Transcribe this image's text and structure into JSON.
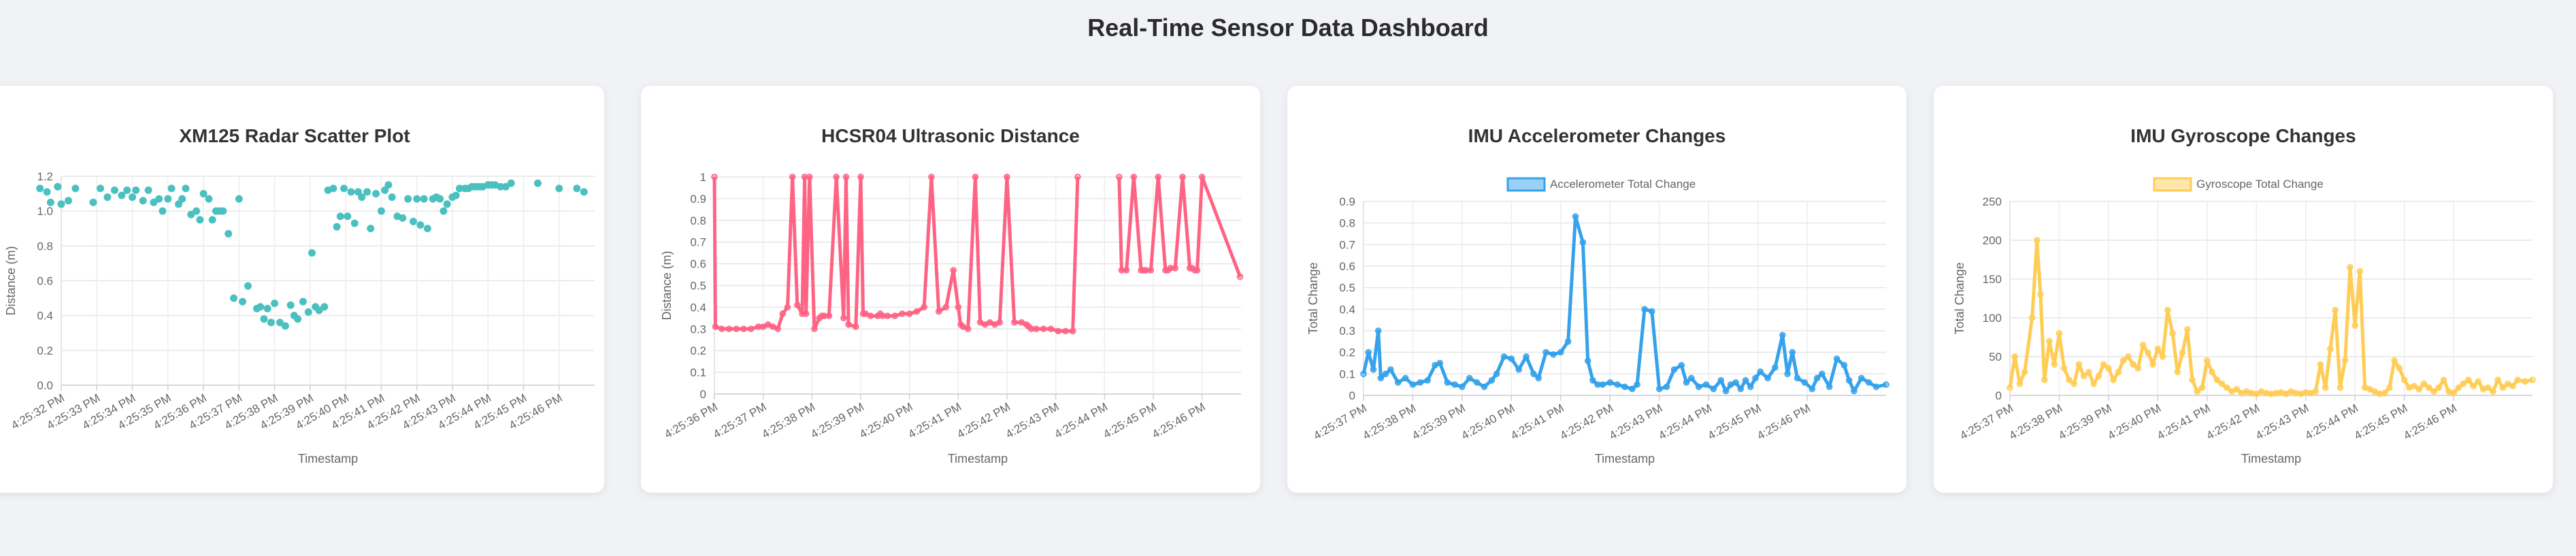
{
  "page": {
    "title": "Real-Time Sensor Data Dashboard"
  },
  "colors": {
    "radar": "#4bc0c0",
    "ultrasonic": "#ff6384",
    "accelerometer": "#36a2eb",
    "gyroscope": "#ffcd56"
  },
  "chart_data": [
    {
      "id": "radar",
      "type": "scatter",
      "title": "XM125 Radar Scatter Plot",
      "xlabel": "Timestamp",
      "ylabel": "Distance (m)",
      "ylim": [
        0,
        1.2
      ],
      "yticks": [
        0,
        0.2,
        0.4,
        0.6,
        0.8,
        1.0,
        1.2
      ],
      "xlim": [
        0,
        15
      ],
      "xtick_labels": [
        "4:25:32 PM",
        "4:25:33 PM",
        "4:25:34 PM",
        "4:25:35 PM",
        "4:25:36 PM",
        "4:25:37 PM",
        "4:25:38 PM",
        "4:25:39 PM",
        "4:25:40 PM",
        "4:25:41 PM",
        "4:25:42 PM",
        "4:25:43 PM",
        "4:25:44 PM",
        "4:25:45 PM",
        "4:25:46 PM"
      ],
      "legend": null,
      "x": [
        -0.6,
        -0.4,
        -0.3,
        -0.1,
        0.0,
        0.2,
        0.4,
        0.9,
        1.1,
        1.3,
        1.5,
        1.7,
        1.85,
        2.0,
        2.1,
        2.3,
        2.45,
        2.6,
        2.75,
        2.85,
        3.0,
        3.1,
        3.3,
        3.4,
        3.5,
        3.65,
        3.8,
        3.9,
        4.0,
        4.15,
        4.25,
        4.35,
        4.45,
        4.55,
        4.7,
        4.85,
        5.0,
        5.1,
        5.25,
        5.5,
        5.6,
        5.7,
        5.8,
        5.9,
        6.0,
        6.15,
        6.3,
        6.45,
        6.55,
        6.65,
        6.8,
        6.95,
        7.05,
        7.15,
        7.25,
        7.4,
        7.5,
        7.65,
        7.75,
        7.85,
        7.95,
        8.05,
        8.15,
        8.25,
        8.35,
        8.45,
        8.6,
        8.7,
        8.85,
        9.0,
        9.1,
        9.2,
        9.3,
        9.45,
        9.6,
        9.75,
        9.9,
        10.0,
        10.1,
        10.2,
        10.3,
        10.45,
        10.55,
        10.65,
        10.75,
        10.85,
        11.0,
        11.1,
        11.2,
        11.35,
        11.45,
        11.55,
        11.65,
        11.75,
        11.85,
        12.0,
        12.1,
        12.2,
        12.35,
        12.5,
        12.65,
        13.4,
        14.0,
        14.5,
        14.7
      ],
      "y": [
        1.13,
        1.11,
        1.05,
        1.14,
        1.04,
        1.06,
        1.13,
        1.05,
        1.13,
        1.08,
        1.12,
        1.09,
        1.12,
        1.08,
        1.12,
        1.06,
        1.12,
        1.05,
        1.07,
        1.0,
        1.07,
        1.13,
        1.04,
        1.07,
        1.13,
        0.98,
        1.0,
        0.95,
        1.1,
        1.07,
        0.95,
        1.0,
        1.0,
        1.0,
        0.87,
        0.5,
        1.07,
        0.48,
        0.57,
        0.44,
        0.45,
        0.38,
        0.44,
        0.36,
        0.47,
        0.36,
        0.34,
        0.46,
        0.4,
        0.38,
        0.48,
        0.42,
        0.76,
        0.45,
        0.43,
        0.45,
        1.12,
        1.13,
        0.91,
        0.97,
        1.13,
        0.97,
        1.11,
        0.93,
        1.11,
        1.08,
        1.11,
        0.9,
        1.1,
        1.0,
        1.12,
        1.15,
        1.08,
        0.97,
        0.96,
        1.07,
        0.94,
        1.07,
        0.92,
        1.07,
        0.9,
        1.07,
        1.08,
        1.07,
        1.0,
        1.04,
        1.08,
        1.09,
        1.13,
        1.13,
        1.13,
        1.14,
        1.14,
        1.14,
        1.14,
        1.15,
        1.15,
        1.15,
        1.14,
        1.14,
        1.16,
        1.16,
        1.13,
        1.13,
        1.11
      ]
    },
    {
      "id": "ultrasonic",
      "type": "line",
      "title": "HCSR04 Ultrasonic Distance",
      "xlabel": "Timestamp",
      "ylabel": "Distance (m)",
      "ylim": [
        0,
        1.0
      ],
      "yticks": [
        0,
        0.1,
        0.2,
        0.3,
        0.4,
        0.5,
        0.6,
        0.7,
        0.8,
        0.9,
        1.0
      ],
      "xlim": [
        0,
        10.8
      ],
      "xtick_labels": [
        "4:25:36 PM",
        "4:25:37 PM",
        "4:25:38 PM",
        "4:25:39 PM",
        "4:25:40 PM",
        "4:25:41 PM",
        "4:25:42 PM",
        "4:25:43 PM",
        "4:25:44 PM",
        "4:25:45 PM",
        "4:25:46 PM"
      ],
      "legend": null,
      "x": [
        0.0,
        0.02,
        0.15,
        0.3,
        0.45,
        0.6,
        0.75,
        0.9,
        1.0,
        1.1,
        1.2,
        1.3,
        1.4,
        1.5,
        1.6,
        1.7,
        1.8,
        1.85,
        1.88,
        1.95,
        2.05,
        2.15,
        2.2,
        2.25,
        2.35,
        2.5,
        2.65,
        2.7,
        2.75,
        2.9,
        3.0,
        3.05,
        3.1,
        3.2,
        3.35,
        3.4,
        3.45,
        3.55,
        3.7,
        3.85,
        4.0,
        4.15,
        4.3,
        4.45,
        4.6,
        4.75,
        4.9,
        5.0,
        5.05,
        5.1,
        5.2,
        5.35,
        5.45,
        5.55,
        5.65,
        5.75,
        5.85,
        6.0,
        6.15,
        6.3,
        6.4,
        6.45,
        6.5,
        6.6,
        6.75,
        6.9,
        7.05,
        7.2,
        7.35,
        7.45,
        7.5,
        7.55,
        7.6,
        8.25,
        8.3,
        8.35,
        8.45,
        8.6,
        8.75,
        8.8,
        8.85,
        8.95,
        9.1,
        9.25,
        9.3,
        9.35,
        9.45,
        9.6,
        9.75,
        9.8,
        9.85,
        9.9,
        10.0,
        10.78
      ],
      "y": [
        1.0,
        0.31,
        0.3,
        0.3,
        0.3,
        0.3,
        0.3,
        0.31,
        0.31,
        0.32,
        0.31,
        0.3,
        0.37,
        0.4,
        1.0,
        0.41,
        0.37,
        1.0,
        0.37,
        1.0,
        0.3,
        0.35,
        0.36,
        0.36,
        0.36,
        1.0,
        0.35,
        1.0,
        0.32,
        0.31,
        1.0,
        0.37,
        0.37,
        0.36,
        0.36,
        0.37,
        0.36,
        0.36,
        0.36,
        0.37,
        0.37,
        0.38,
        0.4,
        1.0,
        0.38,
        0.4,
        0.57,
        0.4,
        0.32,
        0.31,
        0.3,
        1.0,
        0.33,
        0.32,
        0.33,
        0.32,
        0.33,
        1.0,
        0.33,
        0.33,
        0.32,
        0.31,
        0.3,
        0.3,
        0.3,
        0.3,
        0.29,
        0.29,
        0.29,
        1.0,
        null,
        null,
        null,
        null,
        1.0,
        0.57,
        0.57,
        1.0,
        0.57,
        0.57,
        0.57,
        0.57,
        1.0,
        0.57,
        0.57,
        0.58,
        0.58,
        1.0,
        0.58,
        0.58,
        0.57,
        0.57,
        1.0,
        0.54
      ]
    },
    {
      "id": "accelerometer",
      "type": "line",
      "title": "IMU Accelerometer Changes",
      "xlabel": "Timestamp",
      "ylabel": "Total Change",
      "ylim": [
        0,
        0.9
      ],
      "yticks": [
        0,
        0.1,
        0.2,
        0.3,
        0.4,
        0.5,
        0.6,
        0.7,
        0.8,
        0.9
      ],
      "xlim": [
        0,
        10.6
      ],
      "xtick_labels": [
        "4:25:37 PM",
        "4:25:38 PM",
        "4:25:39 PM",
        "4:25:40 PM",
        "4:25:41 PM",
        "4:25:42 PM",
        "4:25:43 PM",
        "4:25:44 PM",
        "4:25:45 PM",
        "4:25:46 PM"
      ],
      "legend": {
        "label": "Accelerometer Total Change",
        "position": "top"
      },
      "x": [
        0.0,
        0.1,
        0.2,
        0.3,
        0.35,
        0.45,
        0.55,
        0.7,
        0.85,
        1.0,
        1.15,
        1.3,
        1.45,
        1.55,
        1.7,
        1.85,
        2.0,
        2.15,
        2.3,
        2.45,
        2.6,
        2.7,
        2.85,
        3.0,
        3.15,
        3.3,
        3.45,
        3.55,
        3.7,
        3.85,
        4.0,
        4.15,
        4.3,
        4.45,
        4.55,
        4.65,
        4.75,
        4.85,
        5.0,
        5.15,
        5.3,
        5.45,
        5.55,
        5.7,
        5.85,
        6.0,
        6.15,
        6.3,
        6.45,
        6.55,
        6.65,
        6.8,
        6.95,
        7.1,
        7.25,
        7.35,
        7.45,
        7.55,
        7.65,
        7.75,
        7.85,
        7.95,
        8.05,
        8.2,
        8.35,
        8.5,
        8.6,
        8.7,
        8.8,
        8.95,
        9.1,
        9.2,
        9.3,
        9.45,
        9.6,
        9.75,
        9.85,
        9.95,
        10.1,
        10.25,
        10.4,
        10.6
      ],
      "y": [
        0.1,
        0.2,
        0.12,
        0.3,
        0.08,
        0.1,
        0.12,
        0.06,
        0.08,
        0.05,
        0.06,
        0.07,
        0.14,
        0.15,
        0.06,
        0.05,
        0.04,
        0.08,
        0.06,
        0.04,
        0.07,
        0.1,
        0.18,
        0.17,
        0.12,
        0.18,
        0.1,
        0.08,
        0.2,
        0.19,
        0.2,
        0.25,
        0.83,
        0.71,
        0.16,
        0.07,
        0.05,
        0.05,
        0.06,
        0.05,
        0.04,
        0.03,
        0.05,
        0.4,
        0.39,
        0.03,
        0.04,
        0.12,
        0.14,
        0.06,
        0.08,
        0.04,
        0.05,
        0.03,
        0.07,
        0.02,
        0.05,
        0.06,
        0.03,
        0.07,
        0.04,
        0.08,
        0.11,
        0.08,
        0.13,
        0.28,
        0.1,
        0.2,
        0.08,
        0.06,
        0.03,
        0.08,
        0.1,
        0.04,
        0.17,
        0.14,
        0.07,
        0.02,
        0.08,
        0.06,
        0.04,
        0.05
      ]
    },
    {
      "id": "gyroscope",
      "type": "line",
      "title": "IMU Gyroscope Changes",
      "xlabel": "Timestamp",
      "ylabel": "Total Change",
      "ylim": [
        0,
        250
      ],
      "yticks": [
        0,
        50,
        100,
        150,
        200,
        250
      ],
      "xlim": [
        0,
        10.6
      ],
      "xtick_labels": [
        "4:25:37 PM",
        "4:25:38 PM",
        "4:25:39 PM",
        "4:25:40 PM",
        "4:25:41 PM",
        "4:25:42 PM",
        "4:25:43 PM",
        "4:25:44 PM",
        "4:25:45 PM",
        "4:25:46 PM"
      ],
      "legend": {
        "label": "Gyroscope Total Change",
        "position": "top"
      },
      "x": [
        0.0,
        0.1,
        0.2,
        0.3,
        0.45,
        0.55,
        0.62,
        0.7,
        0.8,
        0.9,
        1.0,
        1.1,
        1.2,
        1.3,
        1.4,
        1.5,
        1.6,
        1.7,
        1.8,
        1.9,
        2.0,
        2.1,
        2.2,
        2.3,
        2.4,
        2.5,
        2.6,
        2.7,
        2.8,
        2.9,
        3.0,
        3.1,
        3.2,
        3.3,
        3.4,
        3.5,
        3.6,
        3.7,
        3.8,
        3.9,
        4.0,
        4.1,
        4.2,
        4.3,
        4.4,
        4.5,
        4.6,
        4.7,
        4.8,
        4.9,
        5.0,
        5.1,
        5.2,
        5.3,
        5.4,
        5.5,
        5.6,
        5.7,
        5.8,
        5.9,
        6.0,
        6.1,
        6.2,
        6.3,
        6.4,
        6.5,
        6.6,
        6.7,
        6.8,
        6.9,
        7.0,
        7.1,
        7.2,
        7.3,
        7.4,
        7.5,
        7.6,
        7.7,
        7.8,
        7.9,
        8.0,
        8.1,
        8.2,
        8.3,
        8.4,
        8.5,
        8.6,
        8.7,
        8.8,
        8.9,
        9.0,
        9.1,
        9.2,
        9.3,
        9.4,
        9.5,
        9.6,
        9.7,
        9.8,
        9.9,
        10.0,
        10.1,
        10.2,
        10.3,
        10.45,
        10.6
      ],
      "y": [
        10,
        50,
        15,
        30,
        100,
        200,
        130,
        20,
        70,
        40,
        80,
        35,
        20,
        15,
        40,
        25,
        30,
        15,
        25,
        40,
        35,
        20,
        30,
        45,
        50,
        40,
        35,
        65,
        55,
        40,
        60,
        50,
        110,
        80,
        30,
        55,
        85,
        20,
        5,
        10,
        45,
        30,
        20,
        15,
        10,
        5,
        8,
        3,
        5,
        3,
        2,
        5,
        3,
        2,
        3,
        4,
        2,
        5,
        3,
        2,
        4,
        3,
        5,
        40,
        10,
        60,
        110,
        10,
        45,
        165,
        90,
        160,
        10,
        8,
        5,
        2,
        3,
        10,
        45,
        35,
        20,
        10,
        12,
        8,
        15,
        10,
        5,
        10,
        20,
        5,
        3,
        10,
        15,
        20,
        12,
        18,
        8,
        10,
        5,
        20,
        10,
        15,
        12,
        20,
        18,
        20
      ]
    }
  ]
}
